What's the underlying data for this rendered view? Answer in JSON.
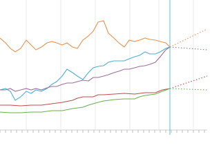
{
  "chart_data": {
    "type": "line",
    "xlim": [
      0,
      300
    ],
    "ylim": [
      0,
      200
    ],
    "xticks": [
      0,
      8,
      16,
      24,
      32,
      40,
      48,
      56,
      64,
      72,
      80,
      88,
      96,
      104,
      112,
      120,
      128,
      136,
      144,
      152,
      160,
      168,
      176,
      184,
      192,
      200,
      208,
      216,
      224,
      232,
      240,
      248,
      256,
      264,
      272,
      280,
      288,
      296
    ],
    "grid_x": [
      38,
      88,
      138,
      188,
      230,
      280
    ],
    "marker_x": 246,
    "marker_color": "#5bc0d6",
    "series": [
      {
        "color": "#e8924a",
        "x": [
          0,
          8,
          15,
          22,
          30,
          38,
          45,
          52,
          60,
          68,
          75,
          82,
          90,
          97,
          105,
          112,
          120,
          128,
          135,
          142,
          150,
          157,
          165,
          172,
          180,
          187,
          195,
          202,
          210,
          217,
          225,
          232,
          240,
          246
        ],
        "values": [
          145,
          138,
          130,
          125,
          130,
          142,
          135,
          128,
          132,
          138,
          140,
          138,
          135,
          138,
          132,
          130,
          142,
          148,
          155,
          168,
          170,
          152,
          145,
          138,
          132,
          142,
          140,
          142,
          145,
          143,
          142,
          140,
          138,
          132
        ]
      },
      {
        "color": "#4ab0d4",
        "x": [
          0,
          8,
          15,
          22,
          30,
          38,
          45,
          52,
          60,
          68,
          75,
          82,
          90,
          97,
          105,
          112,
          120,
          128,
          135,
          142,
          150,
          157,
          165,
          172,
          180,
          187,
          195,
          202,
          210,
          217,
          225,
          232,
          240,
          246
        ],
        "values": [
          70,
          72,
          68,
          55,
          60,
          68,
          65,
          70,
          68,
          72,
          78,
          82,
          90,
          100,
          95,
          90,
          85,
          95,
          102,
          104,
          105,
          110,
          112,
          112,
          112,
          115,
          118,
          120,
          125,
          122,
          122,
          125,
          130,
          132
        ]
      },
      {
        "color": "#9c6e9a",
        "x": [
          0,
          8,
          15,
          22,
          30,
          38,
          45,
          52,
          60,
          68,
          75,
          82,
          90,
          97,
          105,
          112,
          120,
          128,
          135,
          142,
          150,
          157,
          165,
          172,
          180,
          187,
          195,
          202,
          210,
          217,
          225,
          232,
          240,
          246
        ],
        "values": [
          70,
          70,
          72,
          68,
          70,
          72,
          70,
          72,
          70,
          73,
          75,
          75,
          78,
          80,
          80,
          82,
          84,
          83,
          88,
          88,
          90,
          92,
          95,
          97,
          100,
          100,
          102,
          104,
          105,
          107,
          110,
          118,
          128,
          132
        ]
      },
      {
        "color": "#c44a4a",
        "x": [
          0,
          15,
          30,
          45,
          60,
          75,
          90,
          105,
          112,
          120,
          135,
          142,
          150,
          165,
          180,
          195,
          210,
          225,
          235,
          246
        ],
        "values": [
          48,
          48,
          47,
          48,
          48,
          50,
          52,
          55,
          58,
          60,
          60,
          63,
          63,
          64,
          65,
          64,
          66,
          66,
          70,
          72
        ]
      },
      {
        "color": "#6ab04a",
        "x": [
          0,
          15,
          30,
          45,
          60,
          75,
          90,
          105,
          120,
          128,
          135,
          142,
          150,
          165,
          180,
          195,
          202,
          210,
          225,
          235,
          246
        ],
        "values": [
          38,
          37,
          37,
          38,
          38,
          40,
          40,
          43,
          45,
          48,
          50,
          52,
          54,
          56,
          57,
          57,
          60,
          62,
          64,
          68,
          72
        ]
      },
      {
        "color": "#e8924a",
        "dashed": true,
        "x": [
          246,
          300
        ],
        "values": [
          132,
          158
        ]
      },
      {
        "color": "#9c6e9a",
        "dashed": true,
        "x": [
          246,
          300
        ],
        "values": [
          132,
          128
        ]
      },
      {
        "color": "#c44a4a",
        "dashed": true,
        "x": [
          246,
          300
        ],
        "values": [
          72,
          90
        ]
      },
      {
        "color": "#6ab04a",
        "dashed": true,
        "x": [
          246,
          300
        ],
        "values": [
          72,
          70
        ]
      }
    ]
  }
}
